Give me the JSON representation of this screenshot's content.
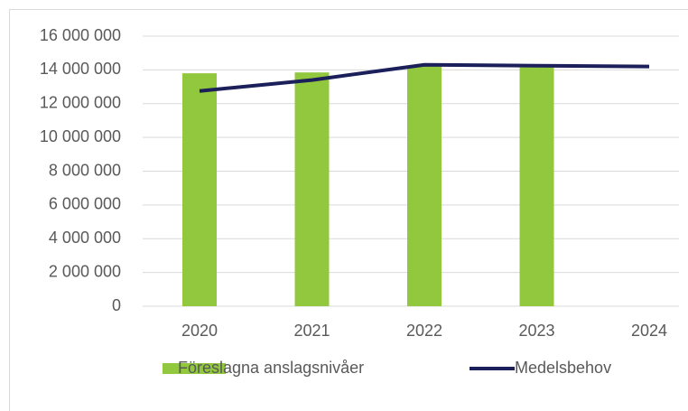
{
  "chart_data": {
    "type": "combo",
    "categories": [
      "2020",
      "2021",
      "2022",
      "2023",
      "2024"
    ],
    "series": [
      {
        "name": "Föreslagna anslagsnivåer",
        "type": "bar",
        "color": "#92c83e",
        "values": [
          13800000,
          13850000,
          14200000,
          14150000,
          null
        ]
      },
      {
        "name": "Medelsbehov",
        "type": "line",
        "color": "#1b1f5a",
        "values": [
          12750000,
          13400000,
          14300000,
          14250000,
          14200000
        ]
      }
    ],
    "ylim": [
      0,
      16000000
    ],
    "yticks": [
      0,
      {
        "value": 2000000,
        "label": "2 000 000"
      },
      {
        "value": 4000000,
        "label": "4 000 000"
      },
      {
        "value": 6000000,
        "label": "6 000 000"
      },
      {
        "value": 8000000,
        "label": "8 000 000"
      },
      {
        "value": 10000000,
        "label": "10 000 000"
      },
      {
        "value": 12000000,
        "label": "12 000 000"
      },
      {
        "value": 14000000,
        "label": "14 000 000"
      },
      {
        "value": 16000000,
        "label": "16 000 000"
      }
    ],
    "grid": true,
    "legend": "bottom"
  }
}
